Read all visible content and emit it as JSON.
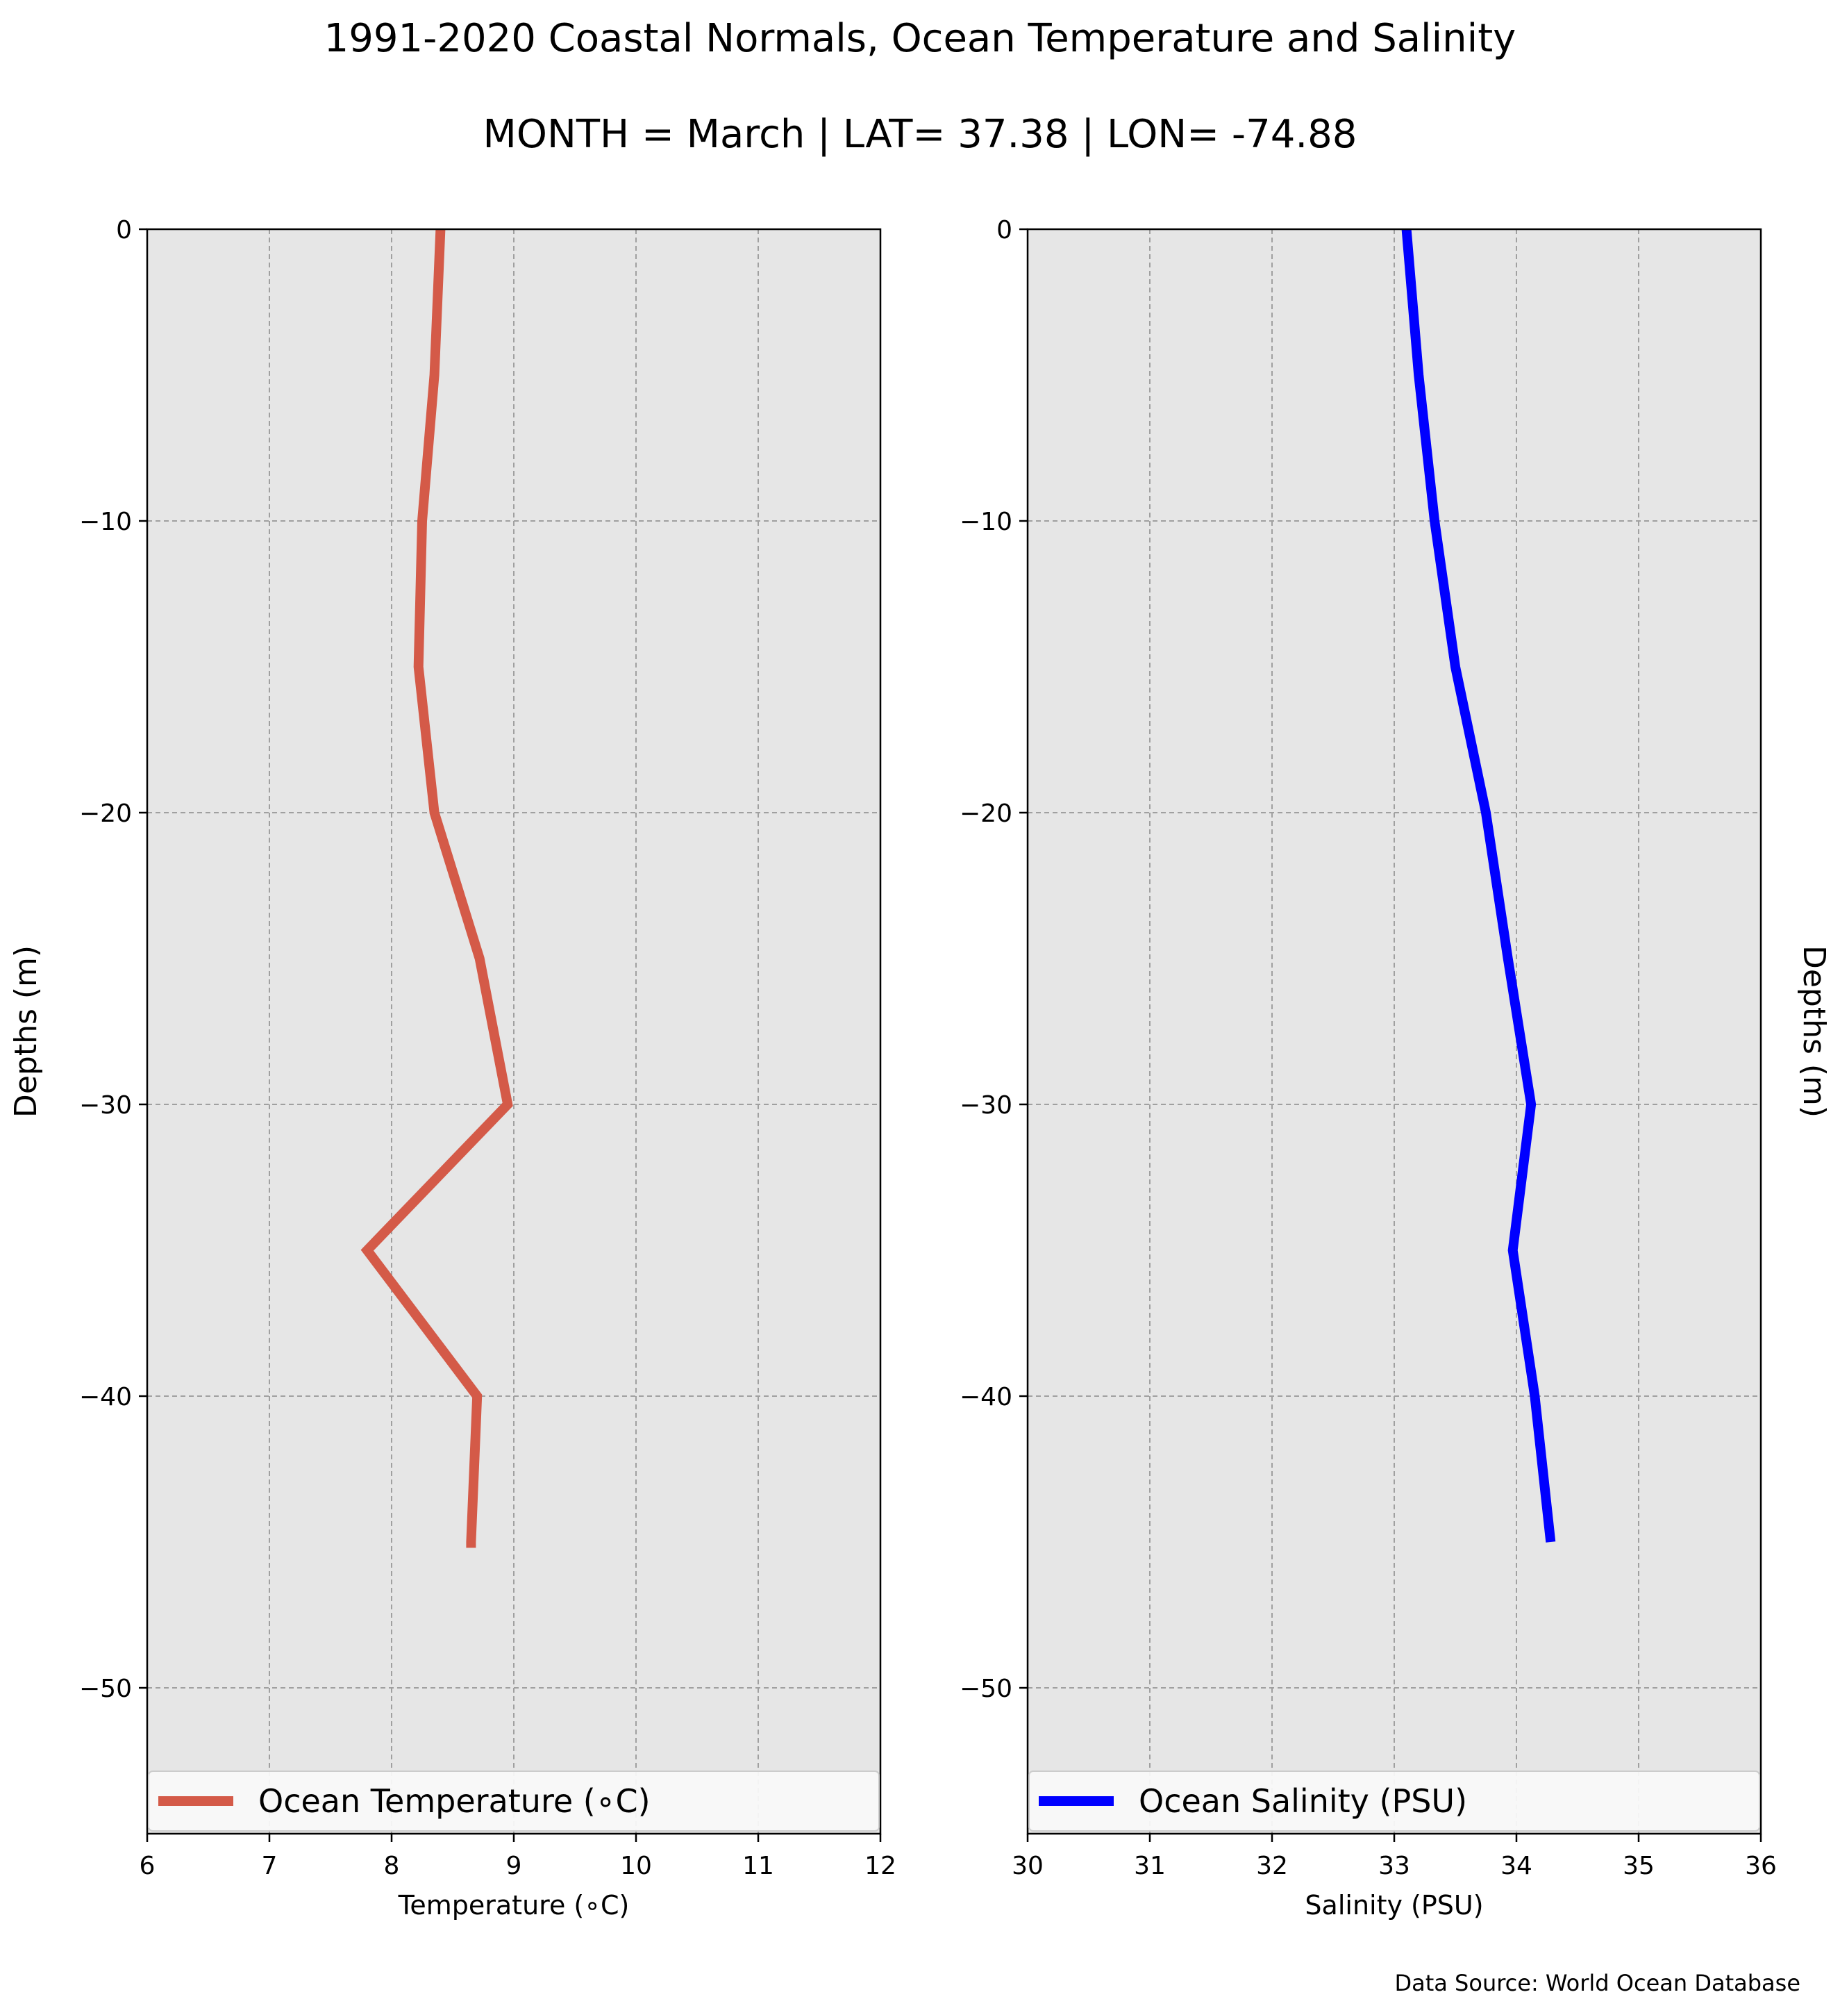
{
  "figure": {
    "title": "1991-2020 Coastal Normals, Ocean Temperature and Salinity",
    "subtitle": "MONTH = March | LAT= 37.38 | LON= -74.88",
    "source": "Data Source: World Ocean Database",
    "background_color": "#ffffff",
    "axes_facecolor": "#e6e6e6",
    "grid_color": "#a0a0a0"
  },
  "chart_data": [
    {
      "type": "line",
      "panel": "left",
      "xlabel": "Temperature (∘C)",
      "ylabel": "Depths (m)",
      "xlim": [
        6,
        12
      ],
      "ylim": [
        -55,
        0
      ],
      "xticks": [
        6,
        7,
        8,
        9,
        10,
        11,
        12
      ],
      "yticks": [
        0,
        -10,
        -20,
        -30,
        -40,
        -50
      ],
      "xtick_labels": [
        "6",
        "7",
        "8",
        "9",
        "10",
        "11",
        "12"
      ],
      "ytick_labels": [
        "0",
        "−10",
        "−20",
        "−30",
        "−40",
        "−50"
      ],
      "grid": true,
      "legend": "bottom",
      "series": [
        {
          "name": "Ocean Temperature (∘C)",
          "color": "#d45a48",
          "x": [
            8.4,
            8.35,
            8.25,
            8.22,
            8.35,
            8.72,
            8.95,
            7.8,
            8.7,
            8.65,
            8.65
          ],
          "y": [
            0,
            -5,
            -10,
            -15,
            -20,
            -25,
            -30,
            -35,
            -40,
            -45,
            -45.2
          ]
        }
      ]
    },
    {
      "type": "line",
      "panel": "right",
      "xlabel": "Salinity (PSU)",
      "ylabel": "Depths (m)",
      "xlim": [
        30,
        36
      ],
      "ylim": [
        -55,
        0
      ],
      "xticks": [
        30,
        31,
        32,
        33,
        34,
        35,
        36
      ],
      "yticks": [
        0,
        -10,
        -20,
        -30,
        -40,
        -50
      ],
      "xtick_labels": [
        "30",
        "31",
        "32",
        "33",
        "34",
        "35",
        "36"
      ],
      "ytick_labels": [
        "0",
        "−10",
        "−20",
        "−30",
        "−40",
        "−50"
      ],
      "grid": true,
      "legend": "bottom",
      "series": [
        {
          "name": "Ocean Salinity (PSU)",
          "color": "#0000ff",
          "x": [
            33.1,
            33.2,
            33.33,
            33.5,
            33.75,
            33.93,
            34.12,
            33.97,
            34.15,
            34.28
          ],
          "y": [
            0,
            -5,
            -10,
            -15,
            -20,
            -25,
            -30,
            -35,
            -40,
            -45
          ]
        }
      ]
    }
  ]
}
